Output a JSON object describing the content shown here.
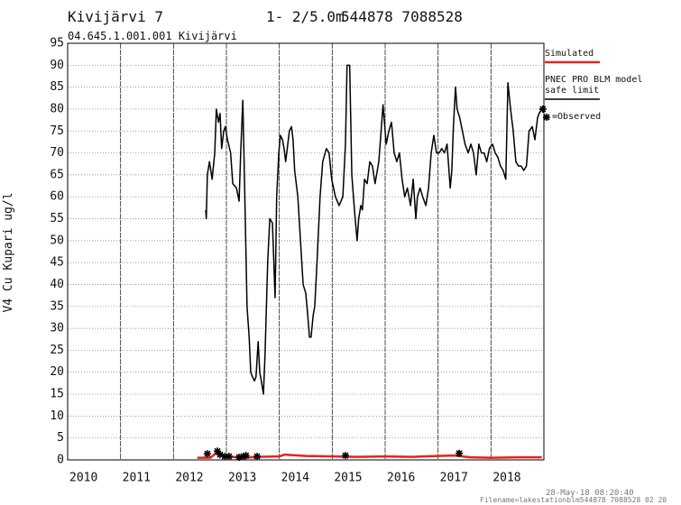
{
  "chart_data": {
    "type": "line",
    "title": "Kivijärvi 7",
    "depth": "1- 2/5.0m",
    "coordinates": "544878 7088528",
    "subtitle": "04.645.1.001.001 Kivijärvi",
    "ylabel": "V4 Cu Kupari ug/l",
    "timestamp": "28-May-18 08:20:40",
    "filename": "Filename=lakestationblm544878 7088528 02 20",
    "xlim": [
      2010,
      2019
    ],
    "xticks": [
      2010,
      2011,
      2012,
      2013,
      2014,
      2015,
      2016,
      2017,
      2018
    ],
    "ylim": [
      0,
      95
    ],
    "yticks": [
      0,
      5,
      10,
      15,
      20,
      25,
      30,
      35,
      40,
      45,
      50,
      55,
      60,
      65,
      70,
      75,
      80,
      85,
      90,
      95
    ],
    "grid": true,
    "legend": "right",
    "series": [
      {
        "name": "Simulated",
        "color": "#e8221b",
        "mode": "line",
        "x": [
          2012.45,
          2012.7,
          2012.8,
          2013.0,
          2013.3,
          2013.6,
          2014.0,
          2014.1,
          2014.5,
          2015.0,
          2015.5,
          2016.0,
          2016.5,
          2017.0,
          2017.3,
          2017.6,
          2018.0,
          2018.5,
          2018.96
        ],
        "values": [
          0.5,
          0.5,
          1.5,
          0.8,
          0.5,
          0.7,
          0.8,
          1.2,
          0.9,
          0.8,
          0.7,
          0.8,
          0.7,
          0.9,
          1.0,
          0.6,
          0.5,
          0.6,
          0.6
        ]
      },
      {
        "name": "PNEC PRO BLM model safe limit",
        "color": "#000000",
        "mode": "line",
        "x": [
          2012.61,
          2012.62,
          2012.64,
          2012.68,
          2012.73,
          2012.78,
          2012.81,
          2012.85,
          2012.88,
          2012.91,
          2012.95,
          2012.98,
          2013.02,
          2013.08,
          2013.12,
          2013.19,
          2013.24,
          2013.27,
          2013.31,
          2013.34,
          2013.39,
          2013.43,
          2013.46,
          2013.49,
          2013.53,
          2013.56,
          2013.6,
          2013.63,
          2013.66,
          2013.7,
          2013.73,
          2013.78,
          2013.82,
          2013.87,
          2013.92,
          2013.95,
          2013.99,
          2014.02,
          2014.06,
          2014.09,
          2014.12,
          2014.16,
          2014.19,
          2014.23,
          2014.26,
          2014.29,
          2014.35,
          2014.4,
          2014.45,
          2014.5,
          2014.53,
          2014.57,
          2014.6,
          2014.64,
          2014.67,
          2014.72,
          2014.77,
          2014.82,
          2014.89,
          2014.94,
          2014.99,
          2015.06,
          2015.13,
          2015.2,
          2015.25,
          2015.28,
          2015.33,
          2015.37,
          2015.42,
          2015.47,
          2015.5,
          2015.54,
          2015.57,
          2015.61,
          2015.66,
          2015.71,
          2015.76,
          2015.81,
          2015.88,
          2015.93,
          2015.96,
          2016.02,
          2016.07,
          2016.12,
          2016.17,
          2016.22,
          2016.27,
          2016.32,
          2016.37,
          2016.42,
          2016.48,
          2016.53,
          2016.58,
          2016.61,
          2016.66,
          2016.71,
          2016.77,
          2016.82,
          2016.87,
          2016.92,
          2016.97,
          2017.02,
          2017.07,
          2017.12,
          2017.17,
          2017.23,
          2017.26,
          2017.29,
          2017.33,
          2017.36,
          2017.41,
          2017.46,
          2017.51,
          2017.57,
          2017.62,
          2017.67,
          2017.72,
          2017.77,
          2017.82,
          2017.87,
          2017.92,
          2017.97,
          2018.03,
          2018.08,
          2018.13,
          2018.18,
          2018.23,
          2018.28,
          2018.32,
          2018.37,
          2018.42,
          2018.47,
          2018.52,
          2018.57,
          2018.62,
          2018.67,
          2018.72,
          2018.78,
          2018.83,
          2018.88,
          2018.91,
          2018.96
        ],
        "values": [
          57,
          55,
          65,
          68,
          64,
          70,
          80,
          77,
          79,
          71,
          75,
          76,
          73,
          70,
          63,
          62,
          59,
          70,
          82,
          65,
          35,
          28,
          20,
          19,
          18,
          19,
          27,
          20,
          18,
          15,
          24,
          45,
          55,
          54,
          37,
          60,
          70,
          74,
          73,
          71,
          68,
          72,
          75,
          76,
          73,
          66,
          60,
          50,
          40,
          38,
          34,
          28,
          28,
          33,
          35,
          47,
          60,
          68,
          71,
          70,
          64,
          60,
          58,
          60,
          72,
          90,
          90,
          65,
          57,
          50,
          55,
          58,
          57,
          64,
          63,
          68,
          67,
          63,
          68,
          76,
          81,
          72,
          75,
          77,
          70,
          68,
          70,
          64,
          60,
          62,
          58,
          64,
          55,
          60,
          62,
          60,
          58,
          62,
          70,
          74,
          70,
          70,
          71,
          70,
          72,
          62,
          66,
          76,
          85,
          80,
          78,
          75,
          72,
          70,
          72,
          70,
          65,
          72,
          70,
          70,
          68,
          71,
          72,
          70,
          69,
          67,
          66,
          64,
          86,
          80,
          75,
          68,
          67,
          67,
          66,
          67,
          75,
          76,
          73,
          78,
          79,
          80
        ]
      },
      {
        "name": "=Observed",
        "color": "#000000",
        "mode": "marker",
        "x": [
          2012.64,
          2012.83,
          2012.88,
          2012.97,
          2013.05,
          2013.24,
          2013.32,
          2013.37,
          2013.58,
          2015.25,
          2017.4,
          2018.98
        ],
        "values": [
          1.4,
          2.0,
          1.2,
          0.8,
          0.8,
          0.6,
          0.8,
          1.0,
          0.8,
          1.0,
          1.5,
          80
        ]
      }
    ]
  }
}
